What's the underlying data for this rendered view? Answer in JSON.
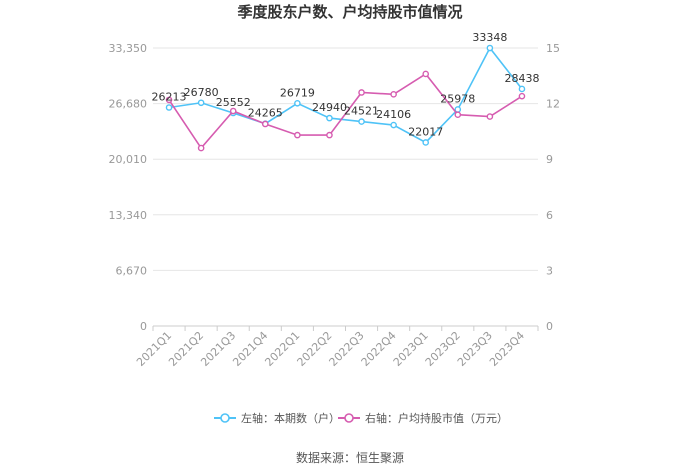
{
  "chart_data": {
    "type": "line",
    "title": "季度股东户数、户均持股市值情况",
    "categories": [
      "2021Q1",
      "2021Q2",
      "2021Q3",
      "2021Q4",
      "2022Q1",
      "2022Q2",
      "2022Q3",
      "2022Q4",
      "2023Q1",
      "2023Q2",
      "2023Q3",
      "2023Q4"
    ],
    "series": [
      {
        "name": "左轴：本期数（户）",
        "axis": "left",
        "color": "#4fc3f7",
        "values": [
          26213,
          26780,
          25552,
          24265,
          26719,
          24940,
          24521,
          24106,
          22017,
          25978,
          33348,
          28438
        ],
        "show_labels": true
      },
      {
        "name": "右轴：户均持股市值（万元）",
        "axis": "right",
        "color": "#d65cb0",
        "values": [
          12.2,
          9.6,
          11.6,
          10.9,
          10.3,
          10.3,
          12.6,
          12.5,
          13.6,
          11.4,
          11.3,
          12.4
        ],
        "show_labels": false
      }
    ],
    "y_left": {
      "ylim": [
        0,
        33350
      ],
      "ticks": [
        0,
        6670,
        13340,
        20010,
        26680,
        33350
      ],
      "tick_labels": [
        "0",
        "6,670",
        "13,340",
        "20,010",
        "26,680",
        "33,350"
      ]
    },
    "y_right": {
      "ylim": [
        0,
        15
      ],
      "ticks": [
        0,
        3,
        6,
        9,
        12,
        15
      ],
      "tick_labels": [
        "0",
        "3",
        "6",
        "9",
        "12",
        "15"
      ]
    },
    "grid": true,
    "legend": "bottom"
  },
  "footer": {
    "source": "数据来源：恒生聚源"
  }
}
